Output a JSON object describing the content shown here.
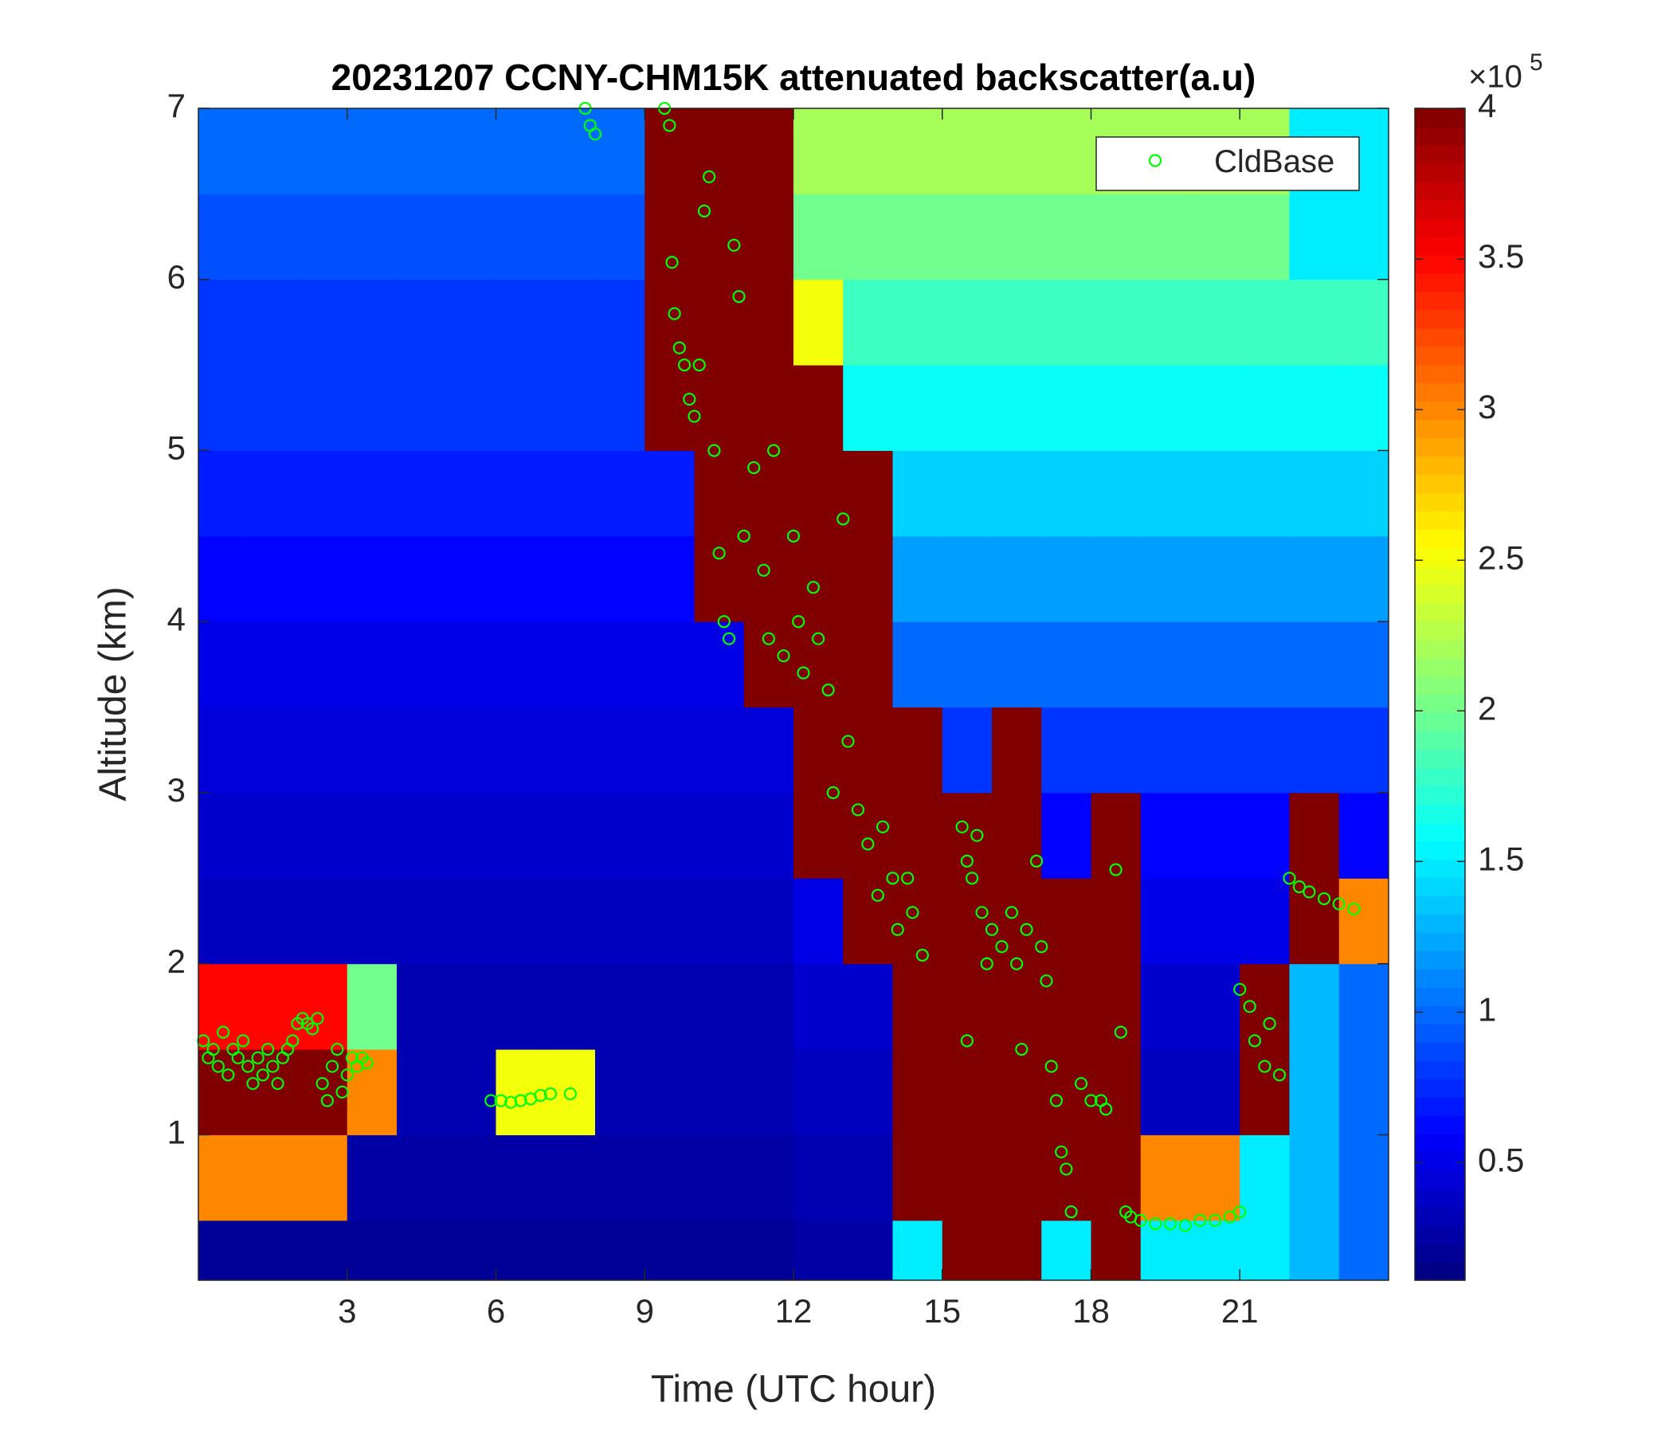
{
  "chart_data": {
    "type": "heatmap",
    "title": "20231207 CCNY-CHM15K attenuated backscatter(a.u)",
    "xlabel": "Time (UTC hour)",
    "ylabel": "Altitude (km)",
    "xlim": [
      0,
      24
    ],
    "xticks": [
      3,
      6,
      9,
      12,
      15,
      18,
      21
    ],
    "ylim": [
      0.15,
      7
    ],
    "yticks": [
      1,
      2,
      3,
      4,
      5,
      6,
      7
    ],
    "x_edges": [
      0,
      1,
      2,
      3,
      4,
      5,
      6,
      7,
      8,
      9,
      10,
      11,
      12,
      13,
      14,
      15,
      16,
      17,
      18,
      19,
      20,
      21,
      22,
      23,
      24
    ],
    "y_edges": [
      0.15,
      0.5,
      1,
      1.5,
      2,
      2.5,
      3,
      3.5,
      4,
      4.5,
      5,
      5.5,
      6,
      6.5,
      7
    ],
    "z": [
      [
        0.2,
        0.2,
        0.2,
        0.2,
        0.2,
        0.2,
        0.2,
        0.2,
        0.2,
        0.2,
        0.2,
        0.2,
        0.25,
        0.25,
        1.5,
        4,
        4,
        1.5,
        4,
        1.5,
        1.5,
        1.5,
        1.3,
        1.0
      ],
      [
        3,
        3,
        3,
        0.25,
        0.25,
        0.25,
        0.25,
        0.25,
        0.25,
        0.25,
        0.25,
        0.25,
        0.3,
        0.3,
        4,
        4,
        4,
        4,
        4,
        3,
        3,
        1.5,
        1.3,
        1.0
      ],
      [
        4,
        4,
        4,
        3,
        0.3,
        0.3,
        2.5,
        2.5,
        0.3,
        0.3,
        0.3,
        0.3,
        0.35,
        0.35,
        4,
        4,
        4,
        4,
        4,
        0.35,
        0.35,
        4,
        1.3,
        1.0
      ],
      [
        3.5,
        3.5,
        3.5,
        2,
        0.3,
        0.3,
        0.3,
        0.3,
        0.3,
        0.3,
        0.3,
        0.3,
        0.4,
        0.4,
        4,
        4,
        4,
        4,
        4,
        0.4,
        0.4,
        4,
        1.3,
        1.0
      ],
      [
        0.35,
        0.35,
        0.35,
        0.35,
        0.35,
        0.35,
        0.35,
        0.35,
        0.35,
        0.35,
        0.35,
        0.35,
        0.5,
        4,
        4,
        4,
        4,
        4,
        4,
        0.5,
        0.5,
        0.5,
        4,
        3
      ],
      [
        0.4,
        0.4,
        0.4,
        0.4,
        0.4,
        0.4,
        0.4,
        0.4,
        0.4,
        0.4,
        0.4,
        0.4,
        4,
        4,
        4,
        4,
        4,
        0.6,
        4,
        0.6,
        0.6,
        0.6,
        4,
        0.6
      ],
      [
        0.45,
        0.45,
        0.45,
        0.45,
        0.45,
        0.45,
        0.45,
        0.45,
        0.45,
        0.45,
        0.45,
        0.45,
        4,
        4,
        4,
        0.8,
        4,
        0.8,
        0.8,
        0.8,
        0.8,
        0.8,
        0.8,
        0.8
      ],
      [
        0.5,
        0.5,
        0.5,
        0.5,
        0.5,
        0.5,
        0.5,
        0.5,
        0.5,
        0.5,
        0.5,
        4,
        4,
        4,
        1.0,
        1.0,
        1.0,
        1.0,
        1.0,
        1.0,
        1.0,
        1.0,
        1.0,
        1.0
      ],
      [
        0.6,
        0.6,
        0.6,
        0.6,
        0.6,
        0.6,
        0.6,
        0.6,
        0.6,
        0.6,
        4,
        4,
        4,
        4,
        1.2,
        1.2,
        1.2,
        1.2,
        1.2,
        1.2,
        1.2,
        1.2,
        1.2,
        1.2
      ],
      [
        0.7,
        0.7,
        0.7,
        0.7,
        0.7,
        0.7,
        0.7,
        0.7,
        0.7,
        0.7,
        4,
        4,
        4,
        4,
        1.4,
        1.4,
        1.4,
        1.4,
        1.4,
        1.4,
        1.4,
        1.4,
        1.4,
        1.4
      ],
      [
        0.8,
        0.8,
        0.8,
        0.8,
        0.8,
        0.8,
        0.8,
        0.8,
        0.8,
        4,
        4,
        4,
        4,
        1.6,
        1.6,
        1.6,
        1.6,
        1.6,
        1.6,
        1.6,
        1.6,
        1.6,
        1.6,
        1.6
      ],
      [
        0.8,
        0.8,
        0.8,
        0.8,
        0.8,
        0.8,
        0.8,
        0.8,
        0.8,
        4,
        4,
        4,
        2.5,
        1.8,
        1.8,
        1.8,
        1.8,
        1.8,
        1.8,
        1.8,
        1.8,
        1.8,
        1.8,
        1.8
      ],
      [
        0.9,
        0.9,
        0.9,
        0.9,
        0.9,
        0.9,
        0.9,
        0.9,
        0.9,
        4,
        4,
        4,
        2.0,
        2.0,
        2.0,
        2.0,
        2.0,
        2.0,
        2.0,
        2.0,
        2.0,
        2.0,
        1.5,
        1.5
      ],
      [
        1.0,
        1.0,
        1.0,
        1.0,
        1.0,
        1.0,
        1.0,
        1.0,
        1.0,
        4,
        4,
        4,
        2.2,
        2.2,
        2.2,
        2.2,
        2.2,
        2.2,
        2.2,
        2.2,
        2.2,
        2.2,
        1.5,
        1.5
      ]
    ],
    "colorbar": {
      "colormap": "jet",
      "clim": [
        0.11,
        4
      ],
      "ticks": [
        0.5,
        1,
        1.5,
        2,
        2.5,
        3,
        3.5,
        4
      ],
      "exponent_prefix": "×10",
      "exponent": 5
    },
    "legend": "northeast",
    "series": [
      {
        "name": "CldBase",
        "type": "scatter",
        "color": "#00ff00",
        "x": [
          0.1,
          0.2,
          0.3,
          0.4,
          0.5,
          0.6,
          0.7,
          0.8,
          0.9,
          1.0,
          1.1,
          1.2,
          1.3,
          1.4,
          1.5,
          1.6,
          1.7,
          1.8,
          1.9,
          2.0,
          2.1,
          2.2,
          2.3,
          2.4,
          2.5,
          2.6,
          2.7,
          2.8,
          2.9,
          3.0,
          3.1,
          3.2,
          3.3,
          3.4,
          5.9,
          6.1,
          6.3,
          6.5,
          6.7,
          6.9,
          7.1,
          7.5,
          7.8,
          7.9,
          8.0,
          9.4,
          9.5,
          9.55,
          9.6,
          9.7,
          9.8,
          9.9,
          10.0,
          10.1,
          10.2,
          10.3,
          10.4,
          10.5,
          10.6,
          10.7,
          10.8,
          10.9,
          11.0,
          11.2,
          11.4,
          11.5,
          11.6,
          11.8,
          12.0,
          12.1,
          12.2,
          12.4,
          12.5,
          12.7,
          12.8,
          13.0,
          13.1,
          13.3,
          13.5,
          13.7,
          13.8,
          14.0,
          14.1,
          14.3,
          14.4,
          14.6,
          15.4,
          15.5,
          15.5,
          15.6,
          15.7,
          15.8,
          15.9,
          16.0,
          16.2,
          16.4,
          16.5,
          16.6,
          16.7,
          16.9,
          17.0,
          17.1,
          17.2,
          17.3,
          17.4,
          17.5,
          17.6,
          17.8,
          18.0,
          18.2,
          18.3,
          18.5,
          18.6,
          18.7,
          18.8,
          19.0,
          19.3,
          19.6,
          19.9,
          20.2,
          20.5,
          20.8,
          21.0,
          21.0,
          21.2,
          21.3,
          21.5,
          21.6,
          21.8,
          22.0,
          22.2,
          22.4,
          22.7,
          23.0,
          23.3
        ],
        "values": [
          1.55,
          1.45,
          1.5,
          1.4,
          1.6,
          1.35,
          1.5,
          1.45,
          1.55,
          1.4,
          1.3,
          1.45,
          1.35,
          1.5,
          1.4,
          1.3,
          1.45,
          1.5,
          1.55,
          1.65,
          1.68,
          1.65,
          1.62,
          1.68,
          1.3,
          1.2,
          1.4,
          1.5,
          1.25,
          1.35,
          1.45,
          1.4,
          1.45,
          1.42,
          1.2,
          1.2,
          1.19,
          1.2,
          1.21,
          1.23,
          1.24,
          1.24,
          7.0,
          6.9,
          6.85,
          7.0,
          6.9,
          6.1,
          5.8,
          5.6,
          5.5,
          5.3,
          5.2,
          5.5,
          6.4,
          6.6,
          5.0,
          4.4,
          4.0,
          3.9,
          6.2,
          5.9,
          4.5,
          4.9,
          4.3,
          3.9,
          5.0,
          3.8,
          4.5,
          4.0,
          3.7,
          4.2,
          3.9,
          3.6,
          3.0,
          4.6,
          3.3,
          2.9,
          2.7,
          2.4,
          2.8,
          2.5,
          2.2,
          2.5,
          2.3,
          2.05,
          2.8,
          2.6,
          1.55,
          2.5,
          2.75,
          2.3,
          2.0,
          2.2,
          2.1,
          2.3,
          2.0,
          1.5,
          2.2,
          2.6,
          2.1,
          1.9,
          1.4,
          1.2,
          0.9,
          0.8,
          0.55,
          1.3,
          1.2,
          1.2,
          1.15,
          2.55,
          1.6,
          0.55,
          0.52,
          0.5,
          0.48,
          0.48,
          0.47,
          0.5,
          0.5,
          0.52,
          0.55,
          1.85,
          1.75,
          1.55,
          1.4,
          1.65,
          1.35,
          2.5,
          2.45,
          2.42,
          2.38,
          2.35,
          2.32
        ]
      }
    ]
  }
}
